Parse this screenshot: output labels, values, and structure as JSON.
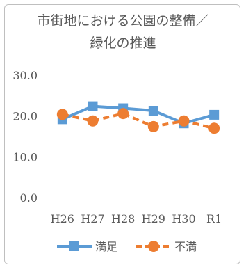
{
  "chart_data": {
    "type": "line",
    "title_line1": "市街地における公園の整備／",
    "title_line2": "緑化の推進",
    "categories": [
      "H26",
      "H27",
      "H28",
      "H29",
      "H30",
      "R1"
    ],
    "y_ticks": [
      "30.0",
      "20.0",
      "10.0",
      "0.0"
    ],
    "ylim": [
      0,
      30
    ],
    "grid": false,
    "legend_position": "bottom",
    "series": [
      {
        "name": "満足",
        "values": [
          19.2,
          22.4,
          21.9,
          21.3,
          18.2,
          20.3
        ],
        "color": "#5b9bd5",
        "marker": "square",
        "dash": "solid"
      },
      {
        "name": "不満",
        "values": [
          20.4,
          18.8,
          20.6,
          17.4,
          18.8,
          17.0
        ],
        "color": "#ed7d31",
        "marker": "circle",
        "dash": "dashed"
      }
    ]
  }
}
